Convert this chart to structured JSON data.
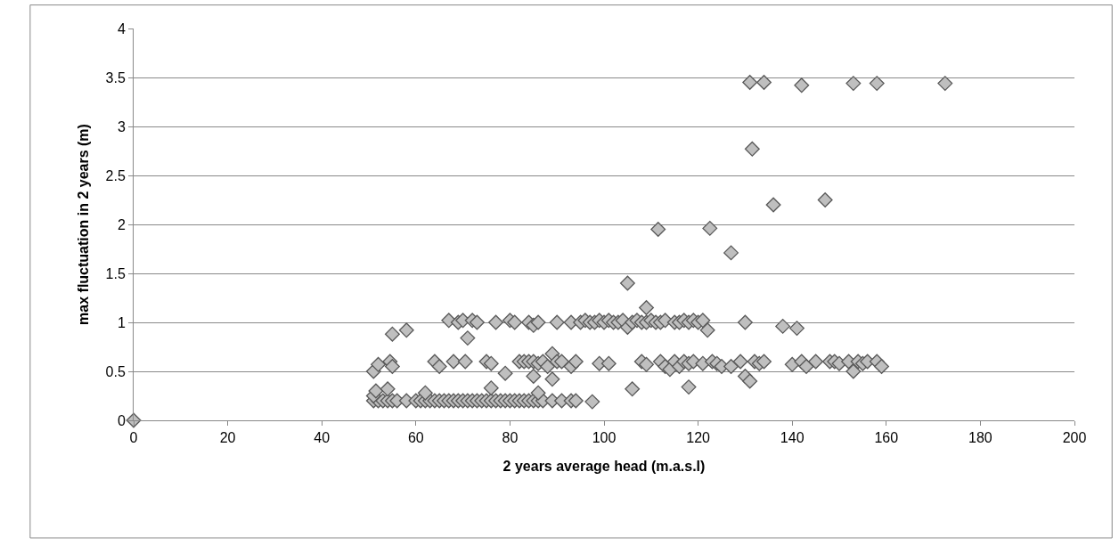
{
  "chart_data": {
    "type": "scatter",
    "xlabel": "2 years average head (m.a.s.l)",
    "ylabel": "max fluctuation in 2 years (m)",
    "xlim": [
      0,
      200
    ],
    "xticks": [
      0,
      20,
      40,
      60,
      80,
      100,
      120,
      140,
      160,
      180,
      200
    ],
    "ylim": [
      0,
      4
    ],
    "yticks": [
      0,
      0.5,
      1,
      1.5,
      2,
      2.5,
      3,
      3.5,
      4
    ],
    "grid": "y",
    "marker": "diamond",
    "series": [
      {
        "color": "#bfbfbf",
        "x": [
          0,
          51,
          52,
          53,
          54,
          55,
          56,
          58,
          60,
          61,
          62,
          63,
          64,
          65,
          66,
          67,
          68,
          69,
          70,
          71,
          72,
          73,
          74,
          75,
          76,
          77,
          78,
          79,
          80,
          81,
          82,
          83,
          84,
          85,
          86,
          87,
          89,
          91,
          93,
          94,
          97.5,
          51,
          51.5,
          54,
          62,
          76,
          86,
          79,
          85,
          89,
          51,
          52,
          54.5,
          55,
          64,
          65,
          68,
          70.5,
          75,
          76,
          82,
          83,
          84,
          85,
          86,
          87,
          88,
          89,
          90,
          91,
          93,
          94,
          99,
          101,
          108,
          109,
          112,
          113,
          114,
          115,
          116,
          117,
          118,
          119,
          121,
          123,
          124,
          125,
          127,
          129,
          130,
          131,
          132,
          133,
          134,
          140,
          142,
          143,
          145,
          148,
          149,
          150,
          152,
          153,
          154,
          155,
          156,
          158,
          159,
          67,
          69,
          70,
          72,
          73,
          77,
          80,
          81,
          84,
          85,
          86,
          90,
          93,
          95,
          96,
          97,
          98,
          99,
          100,
          101,
          102,
          103,
          104,
          105,
          106,
          107,
          108,
          109,
          110,
          111,
          112,
          113,
          115,
          116,
          117,
          118,
          119,
          120,
          121,
          122,
          130,
          138,
          141,
          55,
          58,
          71,
          105,
          109,
          106,
          118,
          111.5,
          122.5,
          127,
          131.5,
          136,
          147,
          131,
          134,
          142,
          153,
          158,
          172.5
        ],
        "values": [
          0,
          0.2,
          0.2,
          0.2,
          0.2,
          0.2,
          0.2,
          0.2,
          0.2,
          0.2,
          0.2,
          0.2,
          0.2,
          0.2,
          0.2,
          0.2,
          0.2,
          0.2,
          0.2,
          0.2,
          0.2,
          0.2,
          0.2,
          0.2,
          0.2,
          0.2,
          0.2,
          0.2,
          0.2,
          0.2,
          0.2,
          0.2,
          0.2,
          0.2,
          0.2,
          0.2,
          0.2,
          0.2,
          0.2,
          0.2,
          0.19,
          0.25,
          0.3,
          0.32,
          0.28,
          0.33,
          0.28,
          0.48,
          0.45,
          0.42,
          0.5,
          0.57,
          0.6,
          0.55,
          0.6,
          0.55,
          0.6,
          0.6,
          0.6,
          0.58,
          0.6,
          0.6,
          0.6,
          0.6,
          0.58,
          0.6,
          0.55,
          0.68,
          0.6,
          0.6,
          0.55,
          0.6,
          0.58,
          0.58,
          0.6,
          0.57,
          0.6,
          0.55,
          0.52,
          0.6,
          0.55,
          0.6,
          0.58,
          0.6,
          0.58,
          0.6,
          0.58,
          0.55,
          0.55,
          0.6,
          0.45,
          0.4,
          0.6,
          0.58,
          0.6,
          0.57,
          0.6,
          0.55,
          0.6,
          0.6,
          0.6,
          0.58,
          0.6,
          0.5,
          0.6,
          0.58,
          0.6,
          0.6,
          0.55,
          1.02,
          1,
          1.02,
          1.02,
          1,
          1,
          1.02,
          1,
          1,
          0.97,
          1,
          1,
          1,
          1,
          1.02,
          1,
          1,
          1.02,
          1,
          1.02,
          1,
          1,
          1.02,
          0.95,
          1,
          1.02,
          1,
          1,
          1.02,
          1,
          1,
          1.02,
          1,
          1,
          1.02,
          1,
          1.02,
          1,
          1.02,
          0.92,
          1,
          0.96,
          0.94,
          0.88,
          0.92,
          0.84,
          1.4,
          1.15,
          0.32,
          0.34,
          1.95,
          1.96,
          1.71,
          2.77,
          2.2,
          2.25,
          3.45,
          3.45,
          3.42,
          3.44,
          3.44,
          3.44
        ]
      }
    ]
  }
}
